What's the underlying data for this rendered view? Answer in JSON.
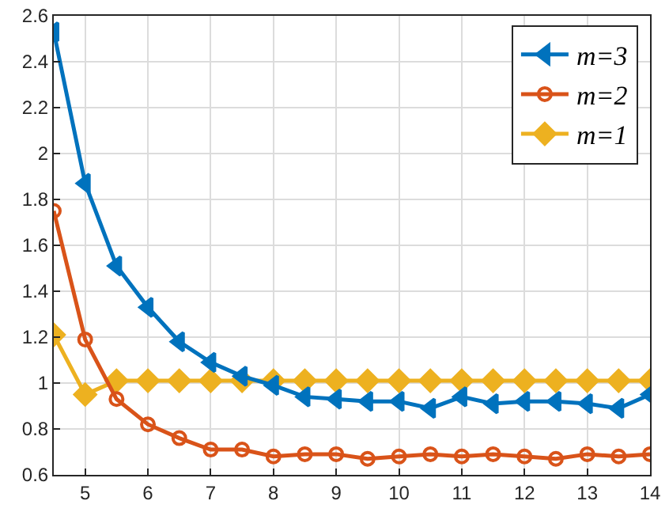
{
  "chart_data": {
    "type": "line",
    "x": [
      4.5,
      5,
      5.5,
      6,
      6.5,
      7,
      7.5,
      8,
      8.5,
      9,
      9.5,
      10,
      10.5,
      11,
      11.5,
      12,
      12.5,
      13,
      13.5,
      14
    ],
    "series": [
      {
        "name": "m=3",
        "color": "#0072bd",
        "marker": "triangle",
        "values": [
          2.53,
          1.87,
          1.51,
          1.33,
          1.18,
          1.09,
          1.03,
          0.99,
          0.94,
          0.93,
          0.92,
          0.92,
          0.89,
          0.94,
          0.91,
          0.92,
          0.92,
          0.91,
          0.89,
          0.95
        ]
      },
      {
        "name": "m=2",
        "color": "#d95319",
        "marker": "circle",
        "values": [
          1.75,
          1.19,
          0.93,
          0.82,
          0.76,
          0.71,
          0.71,
          0.68,
          0.69,
          0.69,
          0.67,
          0.68,
          0.69,
          0.68,
          0.69,
          0.68,
          0.67,
          0.69,
          0.68,
          0.69
        ]
      },
      {
        "name": "m=1",
        "color": "#edb120",
        "marker": "diamond",
        "values": [
          1.21,
          0.95,
          1.01,
          1.01,
          1.01,
          1.01,
          1.01,
          1.01,
          1.01,
          1.01,
          1.01,
          1.01,
          1.01,
          1.01,
          1.01,
          1.01,
          1.01,
          1.01,
          1.01,
          1.01
        ]
      }
    ],
    "xlim": [
      4.5,
      14
    ],
    "xticks": [
      5,
      6,
      7,
      8,
      9,
      10,
      11,
      12,
      13,
      14
    ],
    "ylim": [
      0.6,
      2.6
    ],
    "yticks": [
      0.6,
      0.8,
      1,
      1.2,
      1.4,
      1.6,
      1.8,
      2,
      2.2,
      2.4,
      2.6
    ],
    "grid": true,
    "legend": "top right",
    "line_style": "solid"
  }
}
